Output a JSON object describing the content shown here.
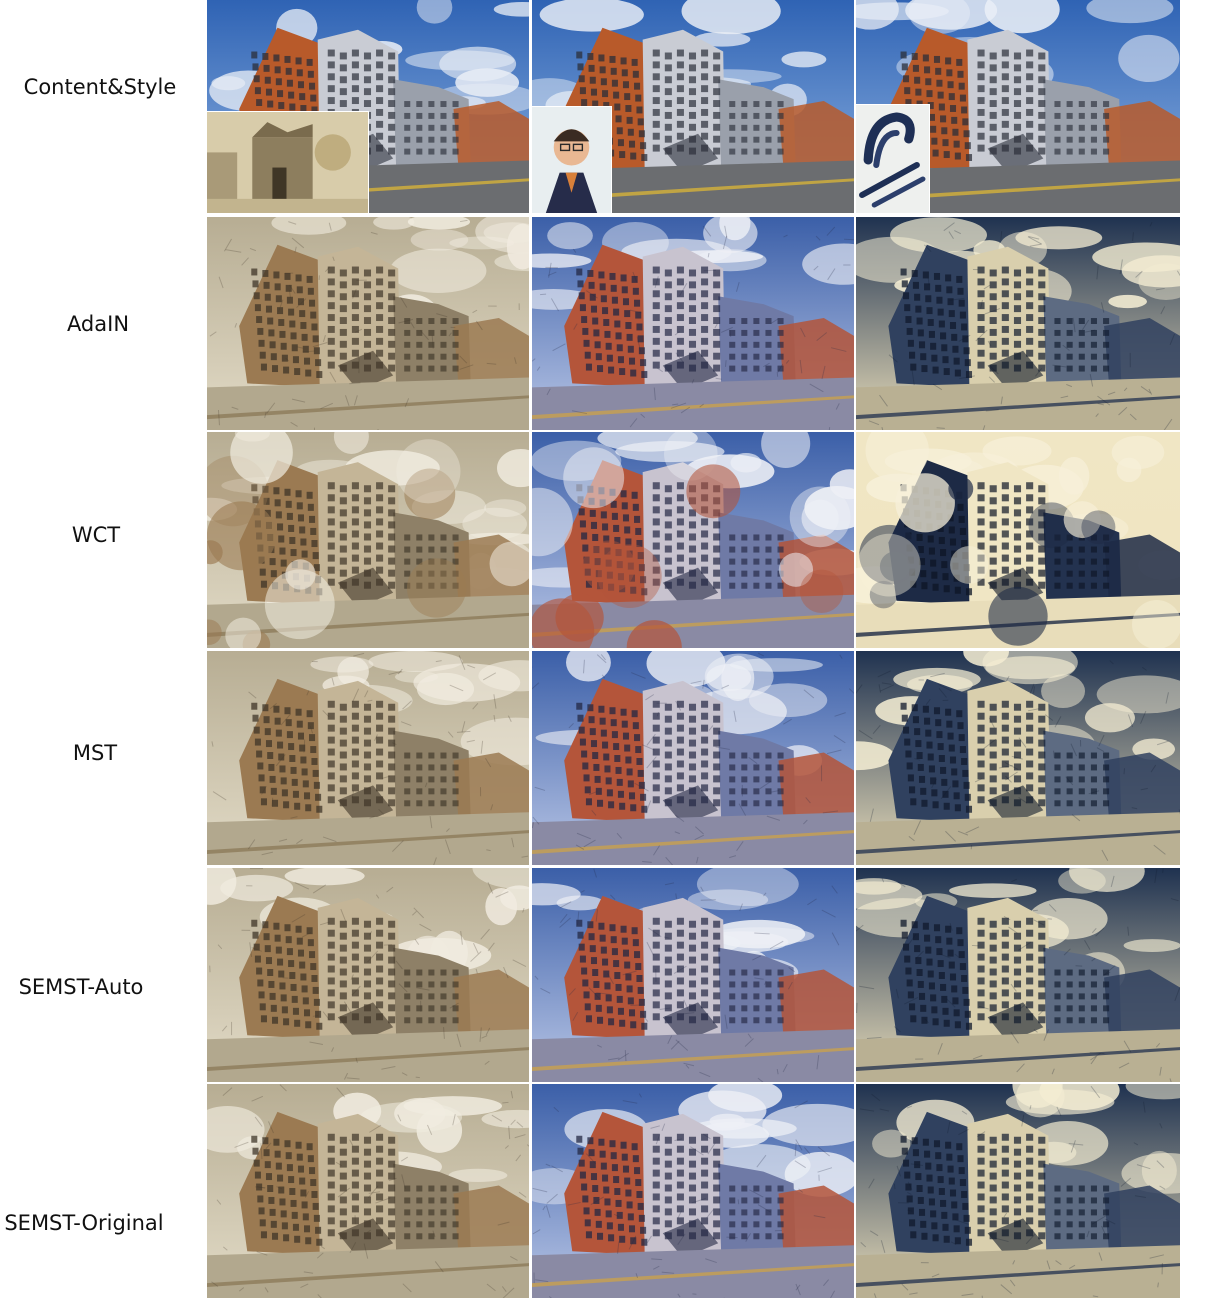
{
  "rows": [
    {
      "label": "Content&Style",
      "style": "photo"
    },
    {
      "label": "AdaIN",
      "style": "adain"
    },
    {
      "label": "WCT",
      "style": "wct"
    },
    {
      "label": "MST",
      "style": "mst"
    },
    {
      "label": "SEMST-Auto",
      "style": "semst"
    },
    {
      "label": "SEMST-Original",
      "style": "semst"
    }
  ],
  "columns": [
    {
      "palette": "sketch",
      "inset": "sketch-ruin"
    },
    {
      "palette": "vivid",
      "inset": "portrait"
    },
    {
      "palette": "navy-cream",
      "inset": "brush-strokes"
    }
  ]
}
